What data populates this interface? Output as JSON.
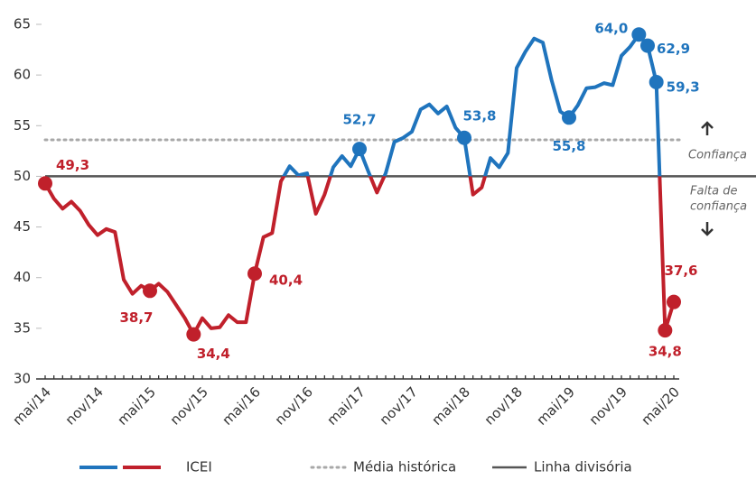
{
  "chart_data": {
    "type": "line",
    "categories": [
      "mai/14",
      null,
      null,
      null,
      null,
      null,
      "nov/14",
      null,
      null,
      null,
      null,
      null,
      "mai/15",
      null,
      null,
      null,
      null,
      null,
      "nov/15",
      null,
      null,
      null,
      null,
      null,
      "mai/16",
      null,
      null,
      null,
      null,
      null,
      "nov/16",
      null,
      null,
      null,
      null,
      null,
      "mai/17",
      null,
      null,
      null,
      null,
      null,
      "nov/17",
      null,
      null,
      null,
      null,
      null,
      "mai/18",
      null,
      null,
      null,
      null,
      null,
      "nov/18",
      null,
      null,
      null,
      null,
      null,
      "mai/19",
      null,
      null,
      null,
      null,
      null,
      "nov/19",
      null,
      null,
      null,
      null,
      null,
      "mai/20"
    ],
    "series": [
      {
        "name": "ICEI",
        "color": "#1f74bd",
        "below_color": "#c0202b",
        "values": [
          49.3,
          47.8,
          46.8,
          47.5,
          46.6,
          45.2,
          44.2,
          44.8,
          44.5,
          39.8,
          38.4,
          39.2,
          38.7,
          39.4,
          38.6,
          37.3,
          36.0,
          34.4,
          36.0,
          35.0,
          35.1,
          36.3,
          35.6,
          35.6,
          40.4,
          44.0,
          44.4,
          49.5,
          51.0,
          50.1,
          50.3,
          46.3,
          48.2,
          50.9,
          52.0,
          51.0,
          52.7,
          50.5,
          48.4,
          50.3,
          53.4,
          53.8,
          54.4,
          56.6,
          57.1,
          56.2,
          56.9,
          54.8,
          53.8,
          48.2,
          48.9,
          51.8,
          50.9,
          52.3,
          60.7,
          62.3,
          63.6,
          63.2,
          59.5,
          56.4,
          55.8,
          57.0,
          58.7,
          58.8,
          59.2,
          59.0,
          61.9,
          62.8,
          64.0,
          62.9,
          59.3,
          34.8,
          37.6
        ],
        "value_labels": [
          "49,3",
          null,
          null,
          null,
          null,
          null,
          null,
          null,
          null,
          null,
          null,
          null,
          "38,7",
          null,
          null,
          null,
          null,
          "34,4",
          null,
          null,
          null,
          null,
          null,
          null,
          "40,4",
          null,
          null,
          null,
          null,
          null,
          null,
          null,
          null,
          null,
          null,
          null,
          "52,7",
          null,
          null,
          null,
          null,
          null,
          null,
          null,
          null,
          null,
          null,
          null,
          "53,8",
          null,
          null,
          null,
          null,
          null,
          null,
          null,
          null,
          null,
          null,
          null,
          "55,8",
          null,
          null,
          null,
          null,
          null,
          null,
          null,
          "64,0",
          "62,9",
          "59,3",
          "34,8",
          "37,6"
        ]
      }
    ],
    "reference_lines": [
      {
        "name": "Média histórica",
        "value": 53.6,
        "style": "dotted",
        "color": "#a8a8a8"
      },
      {
        "name": "Linha divisória",
        "value": 50,
        "style": "solid",
        "color": "#555555"
      }
    ],
    "threshold": 50,
    "annotation_above": "Confiança",
    "annotation_below": [
      "Falta de",
      "confiança"
    ],
    "ylim": [
      30,
      65
    ],
    "yticks": [
      30,
      35,
      40,
      45,
      50,
      55,
      60,
      65
    ],
    "grid": false
  }
}
